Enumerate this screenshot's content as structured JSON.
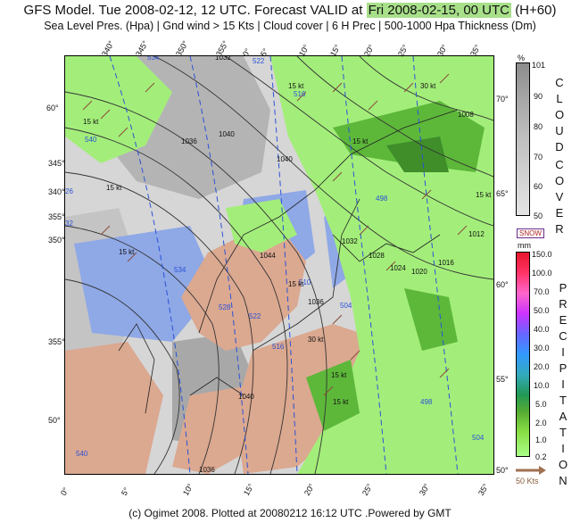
{
  "title": {
    "prefix": "GFS Model. Tue 2008-02-12, 12 UTC. Forecast VALID at",
    "valid": "Fri 2008-02-15, 00 UTC",
    "lead": "(H+60)"
  },
  "subtitle": "Sea Level Pres. (Hpa) | Gnd wind > 15 Kts | Cloud cover | 6 H Prec | 500-1000 Hpa Thickness (Dm)",
  "footer": "(c) Ogimet 2008. Plotted at 20080212 16:12 UTC .Powered by GMT",
  "cloud_legend": {
    "unit": "%",
    "title_letters": [
      "C",
      "L",
      "O",
      "U",
      "D",
      "",
      "C",
      "O",
      "V",
      "E",
      "R"
    ],
    "ticks": [
      "101",
      "90",
      "80",
      "70",
      "60",
      "50"
    ],
    "colors": [
      "#8c8c8c",
      "#a8a8a8",
      "#c0c0c0",
      "#d2d2d2",
      "#e4e4e4"
    ]
  },
  "snow_label": "SNOW",
  "precip_legend": {
    "unit": "mm",
    "title_letters": [
      "P",
      "R",
      "E",
      "C",
      "I",
      "P",
      "I",
      "T",
      "A",
      "T",
      "I",
      "O",
      "N"
    ],
    "ticks": [
      "150.0",
      "100.0",
      "70.0",
      "50.0",
      "40.0",
      "30.0",
      "20.0",
      "10.0",
      "5.0",
      "2.0",
      "1.0",
      "0.2"
    ],
    "colors": [
      "#e8162c",
      "#ff3366",
      "#ff66cc",
      "#cc33ff",
      "#6666ff",
      "#3399ff",
      "#33aabb",
      "#229955",
      "#55aa33",
      "#88dd44",
      "#aaff88"
    ]
  },
  "wind_scale_label": "50 Kts",
  "longitude_ticks_bottom": [
    "0°",
    "5°",
    "10°",
    "15°",
    "20°",
    "25°",
    "30°",
    "35°"
  ],
  "longitude_ticks_top": [
    "340°",
    "345°",
    "350°",
    "355°",
    "0°",
    "5°",
    "10°",
    "15°",
    "20°",
    "25°",
    "30°",
    "35°"
  ],
  "latitude_ticks_right": [
    "70°",
    "65°",
    "60°",
    "55°",
    "50°"
  ],
  "latitude_ticks_left": [
    "60°",
    "345°",
    "355°",
    "340°",
    "350°",
    "355°",
    "50°"
  ],
  "pressure_labels": [
    "1032",
    "1036",
    "1040",
    "1040",
    "1044",
    "1036",
    "1032",
    "1028",
    "1024",
    "1020",
    "1016",
    "1012",
    "1008",
    "1040",
    "1036"
  ],
  "thickness_labels": [
    "534",
    "522",
    "516",
    "540",
    "498",
    "534",
    "528",
    "522",
    "510",
    "504",
    "516",
    "498",
    "504",
    "540",
    "540",
    "26",
    "32"
  ],
  "wind_labels": [
    "15 kt",
    "15 kt",
    "15 kt",
    "15 kt",
    "30 kt",
    "15 kt",
    "15 kt",
    "15 kt",
    "30 kt",
    "15 kt",
    "15 kt"
  ]
}
